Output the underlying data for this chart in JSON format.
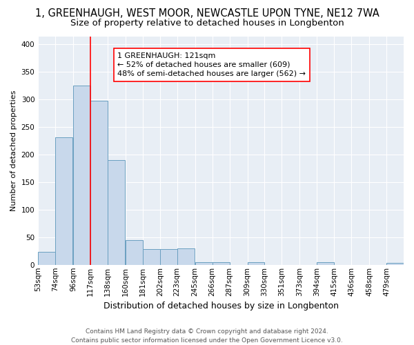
{
  "title": "1, GREENHAUGH, WEST MOOR, NEWCASTLE UPON TYNE, NE12 7WA",
  "subtitle": "Size of property relative to detached houses in Longbenton",
  "xlabel": "Distribution of detached houses by size in Longbenton",
  "ylabel": "Number of detached properties",
  "bar_color": "#c8d8eb",
  "bar_edge_color": "#6a9fc0",
  "bin_labels": [
    "53sqm",
    "74sqm",
    "96sqm",
    "117sqm",
    "138sqm",
    "160sqm",
    "181sqm",
    "202sqm",
    "223sqm",
    "245sqm",
    "266sqm",
    "287sqm",
    "309sqm",
    "330sqm",
    "351sqm",
    "373sqm",
    "394sqm",
    "415sqm",
    "436sqm",
    "458sqm",
    "479sqm"
  ],
  "values": [
    24,
    232,
    325,
    298,
    190,
    45,
    29,
    29,
    30,
    5,
    5,
    0,
    5,
    0,
    0,
    0,
    5,
    0,
    0,
    0,
    3
  ],
  "annotation_label": "1 GREENHAUGH: 121sqm",
  "annotation_line1": "← 52% of detached houses are smaller (609)",
  "annotation_line2": "48% of semi-detached houses are larger (562) →",
  "red_line_color": "red",
  "ylim": [
    0,
    415
  ],
  "yticks": [
    0,
    50,
    100,
    150,
    200,
    250,
    300,
    350,
    400
  ],
  "background_color": "#e8eef5",
  "grid_color": "#ffffff",
  "footer_line1": "Contains HM Land Registry data © Crown copyright and database right 2024.",
  "footer_line2": "Contains public sector information licensed under the Open Government Licence v3.0.",
  "title_fontsize": 10.5,
  "subtitle_fontsize": 9.5,
  "xlabel_fontsize": 9,
  "ylabel_fontsize": 8,
  "tick_fontsize": 7.5,
  "footer_fontsize": 6.5,
  "annot_fontsize": 8,
  "bin_width": 21,
  "red_line_bin_idx": 3
}
